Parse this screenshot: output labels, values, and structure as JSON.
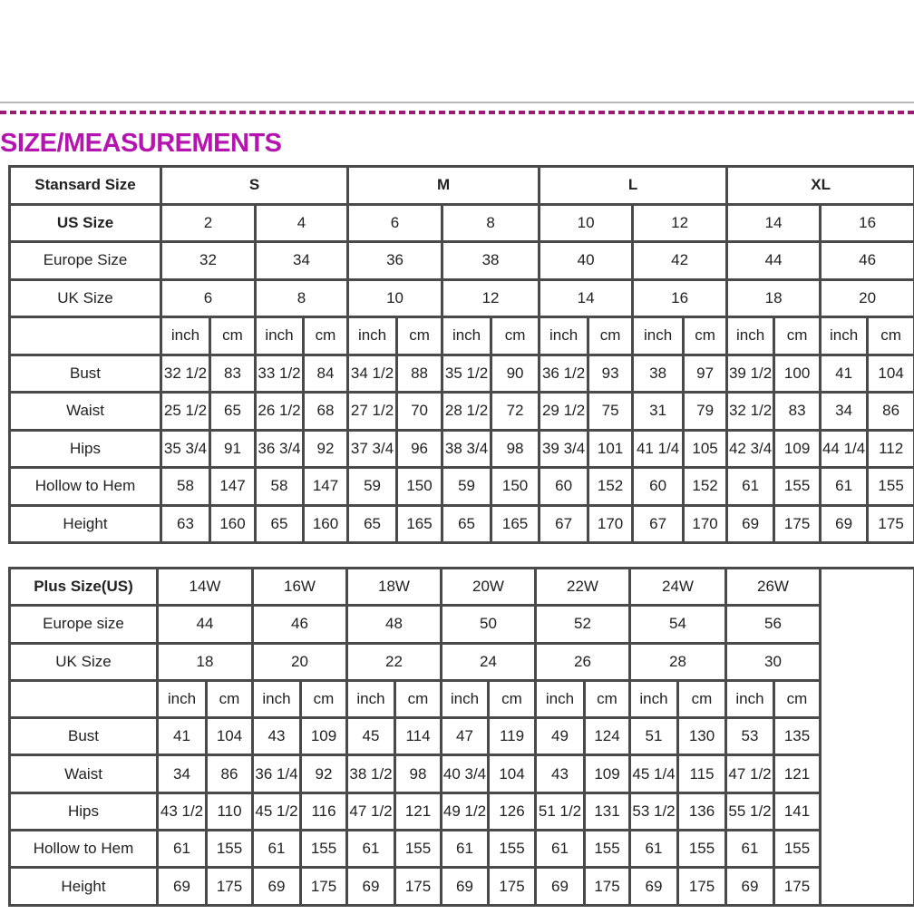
{
  "title": "SIZE/MEASUREMENTS",
  "colors": {
    "title": "#b514b0",
    "dashed_rule": "#9c1a74",
    "grid": "#4a4a4a"
  },
  "standard_table": {
    "header_label": "Stansard Size",
    "groups": [
      "S",
      "M",
      "L",
      "XL"
    ],
    "us_label": "US Size",
    "us": [
      "2",
      "4",
      "6",
      "8",
      "10",
      "12",
      "14",
      "16"
    ],
    "europe_label": "Europe Size",
    "europe": [
      "32",
      "34",
      "36",
      "38",
      "40",
      "42",
      "44",
      "46"
    ],
    "uk_label": "UK Size",
    "uk": [
      "6",
      "8",
      "10",
      "12",
      "14",
      "16",
      "18",
      "20"
    ],
    "units": [
      "inch",
      "cm"
    ],
    "rows": [
      {
        "label": "Bust",
        "values": [
          "32 1/2",
          "83",
          "33 1/2",
          "84",
          "34 1/2",
          "88",
          "35 1/2",
          "90",
          "36 1/2",
          "93",
          "38",
          "97",
          "39 1/2",
          "100",
          "41",
          "104"
        ]
      },
      {
        "label": "Waist",
        "values": [
          "25 1/2",
          "65",
          "26 1/2",
          "68",
          "27 1/2",
          "70",
          "28 1/2",
          "72",
          "29 1/2",
          "75",
          "31",
          "79",
          "32 1/2",
          "83",
          "34",
          "86"
        ]
      },
      {
        "label": "Hips",
        "values": [
          "35 3/4",
          "91",
          "36 3/4",
          "92",
          "37 3/4",
          "96",
          "38 3/4",
          "98",
          "39 3/4",
          "101",
          "41 1/4",
          "105",
          "42 3/4",
          "109",
          "44 1/4",
          "112"
        ]
      },
      {
        "label": "Hollow to Hem",
        "values": [
          "58",
          "147",
          "58",
          "147",
          "59",
          "150",
          "59",
          "150",
          "60",
          "152",
          "60",
          "152",
          "61",
          "155",
          "61",
          "155"
        ]
      },
      {
        "label": "Height",
        "values": [
          "63",
          "160",
          "65",
          "160",
          "65",
          "165",
          "65",
          "165",
          "67",
          "170",
          "67",
          "170",
          "69",
          "175",
          "69",
          "175"
        ]
      }
    ]
  },
  "plus_table": {
    "header_label": "Plus Size(US)",
    "us": [
      "14W",
      "16W",
      "18W",
      "20W",
      "22W",
      "24W",
      "26W"
    ],
    "europe_label": "Europe size",
    "europe": [
      "44",
      "46",
      "48",
      "50",
      "52",
      "54",
      "56"
    ],
    "uk_label": "UK Size",
    "uk": [
      "18",
      "20",
      "22",
      "24",
      "26",
      "28",
      "30"
    ],
    "units": [
      "inch",
      "cm"
    ],
    "rows": [
      {
        "label": "Bust",
        "values": [
          "41",
          "104",
          "43",
          "109",
          "45",
          "114",
          "47",
          "119",
          "49",
          "124",
          "51",
          "130",
          "53",
          "135"
        ]
      },
      {
        "label": "Waist",
        "values": [
          "34",
          "86",
          "36 1/4",
          "92",
          "38 1/2",
          "98",
          "40 3/4",
          "104",
          "43",
          "109",
          "45 1/4",
          "115",
          "47 1/2",
          "121"
        ]
      },
      {
        "label": "Hips",
        "values": [
          "43 1/2",
          "110",
          "45 1/2",
          "116",
          "47 1/2",
          "121",
          "49 1/2",
          "126",
          "51 1/2",
          "131",
          "53 1/2",
          "136",
          "55 1/2",
          "141"
        ]
      },
      {
        "label": "Hollow to Hem",
        "values": [
          "61",
          "155",
          "61",
          "155",
          "61",
          "155",
          "61",
          "155",
          "61",
          "155",
          "61",
          "155",
          "61",
          "155"
        ]
      },
      {
        "label": "Height",
        "values": [
          "69",
          "175",
          "69",
          "175",
          "69",
          "175",
          "69",
          "175",
          "69",
          "175",
          "69",
          "175",
          "69",
          "175"
        ]
      }
    ]
  }
}
